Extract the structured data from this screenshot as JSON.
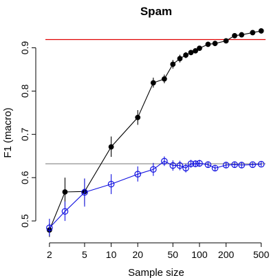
{
  "chart_data": {
    "type": "line",
    "title": "Spam",
    "xlabel": "Sample size",
    "ylabel": "F1 (macro)",
    "x_scale": "log",
    "xlim": [
      1.8,
      560
    ],
    "ylim": [
      0.47,
      0.95
    ],
    "x_ticks": [
      2,
      5,
      10,
      20,
      50,
      100,
      200,
      500
    ],
    "x_tick_labels": [
      "2",
      "5",
      "10",
      "20",
      "50",
      "100",
      "200",
      "500"
    ],
    "y_ticks": [
      0.5,
      0.6,
      0.7,
      0.8,
      0.9
    ],
    "y_tick_labels": [
      "0.5",
      "0.6",
      "0.7",
      "0.8",
      "0.9"
    ],
    "grid": false,
    "legend": "none",
    "reference_lines": [
      {
        "y": 0.919,
        "color": "#e00000"
      },
      {
        "y": 0.632,
        "color": "#9a9a9a"
      }
    ],
    "series": [
      {
        "color": "#000000",
        "marker": "filled-circle",
        "points": [
          {
            "x": 2,
            "y": 0.479,
            "lo": 0.463,
            "hi": 0.495
          },
          {
            "x": 3,
            "y": 0.567,
            "lo": 0.532,
            "hi": 0.6
          },
          {
            "x": 5,
            "y": 0.568,
            "lo": 0.538,
            "hi": 0.598
          },
          {
            "x": 10,
            "y": 0.671,
            "lo": 0.648,
            "hi": 0.695
          },
          {
            "x": 20,
            "y": 0.739,
            "lo": 0.722,
            "hi": 0.756
          },
          {
            "x": 30,
            "y": 0.819,
            "lo": 0.808,
            "hi": 0.831
          },
          {
            "x": 40,
            "y": 0.828,
            "lo": 0.818,
            "hi": 0.838
          },
          {
            "x": 50,
            "y": 0.862,
            "lo": 0.852,
            "hi": 0.872
          },
          {
            "x": 60,
            "y": 0.875,
            "lo": 0.866,
            "hi": 0.884
          },
          {
            "x": 70,
            "y": 0.883,
            "lo": 0.876,
            "hi": 0.89
          },
          {
            "x": 80,
            "y": 0.889,
            "lo": 0.883,
            "hi": 0.895
          },
          {
            "x": 90,
            "y": 0.893,
            "lo": 0.888,
            "hi": 0.898
          },
          {
            "x": 100,
            "y": 0.899,
            "lo": 0.894,
            "hi": 0.904
          },
          {
            "x": 125,
            "y": 0.908,
            "lo": 0.904,
            "hi": 0.912
          },
          {
            "x": 150,
            "y": 0.91,
            "lo": 0.906,
            "hi": 0.914
          },
          {
            "x": 200,
            "y": 0.916,
            "lo": 0.912,
            "hi": 0.92
          },
          {
            "x": 250,
            "y": 0.928,
            "lo": 0.924,
            "hi": 0.932
          },
          {
            "x": 300,
            "y": 0.93,
            "lo": 0.926,
            "hi": 0.934
          },
          {
            "x": 400,
            "y": 0.935,
            "lo": 0.931,
            "hi": 0.939
          },
          {
            "x": 500,
            "y": 0.939,
            "lo": 0.935,
            "hi": 0.943
          }
        ]
      },
      {
        "color": "#1010e0",
        "marker": "open-circle",
        "points": [
          {
            "x": 2,
            "y": 0.484,
            "lo": 0.465,
            "hi": 0.505
          },
          {
            "x": 3,
            "y": 0.522,
            "lo": 0.5,
            "hi": 0.545
          },
          {
            "x": 5,
            "y": 0.566,
            "lo": 0.533,
            "hi": 0.598
          },
          {
            "x": 10,
            "y": 0.585,
            "lo": 0.562,
            "hi": 0.608
          },
          {
            "x": 20,
            "y": 0.608,
            "lo": 0.591,
            "hi": 0.626
          },
          {
            "x": 30,
            "y": 0.619,
            "lo": 0.604,
            "hi": 0.634
          },
          {
            "x": 40,
            "y": 0.638,
            "lo": 0.627,
            "hi": 0.649
          },
          {
            "x": 50,
            "y": 0.628,
            "lo": 0.616,
            "hi": 0.64
          },
          {
            "x": 60,
            "y": 0.628,
            "lo": 0.617,
            "hi": 0.639
          },
          {
            "x": 70,
            "y": 0.622,
            "lo": 0.612,
            "hi": 0.632
          },
          {
            "x": 80,
            "y": 0.632,
            "lo": 0.623,
            "hi": 0.641
          },
          {
            "x": 90,
            "y": 0.632,
            "lo": 0.624,
            "hi": 0.64
          },
          {
            "x": 100,
            "y": 0.633,
            "lo": 0.625,
            "hi": 0.641
          },
          {
            "x": 125,
            "y": 0.63,
            "lo": 0.623,
            "hi": 0.637
          },
          {
            "x": 150,
            "y": 0.622,
            "lo": 0.615,
            "hi": 0.629
          },
          {
            "x": 200,
            "y": 0.629,
            "lo": 0.623,
            "hi": 0.635
          },
          {
            "x": 250,
            "y": 0.63,
            "lo": 0.624,
            "hi": 0.636
          },
          {
            "x": 300,
            "y": 0.629,
            "lo": 0.623,
            "hi": 0.635
          },
          {
            "x": 400,
            "y": 0.63,
            "lo": 0.625,
            "hi": 0.635
          },
          {
            "x": 500,
            "y": 0.631,
            "lo": 0.626,
            "hi": 0.636
          }
        ]
      }
    ]
  }
}
